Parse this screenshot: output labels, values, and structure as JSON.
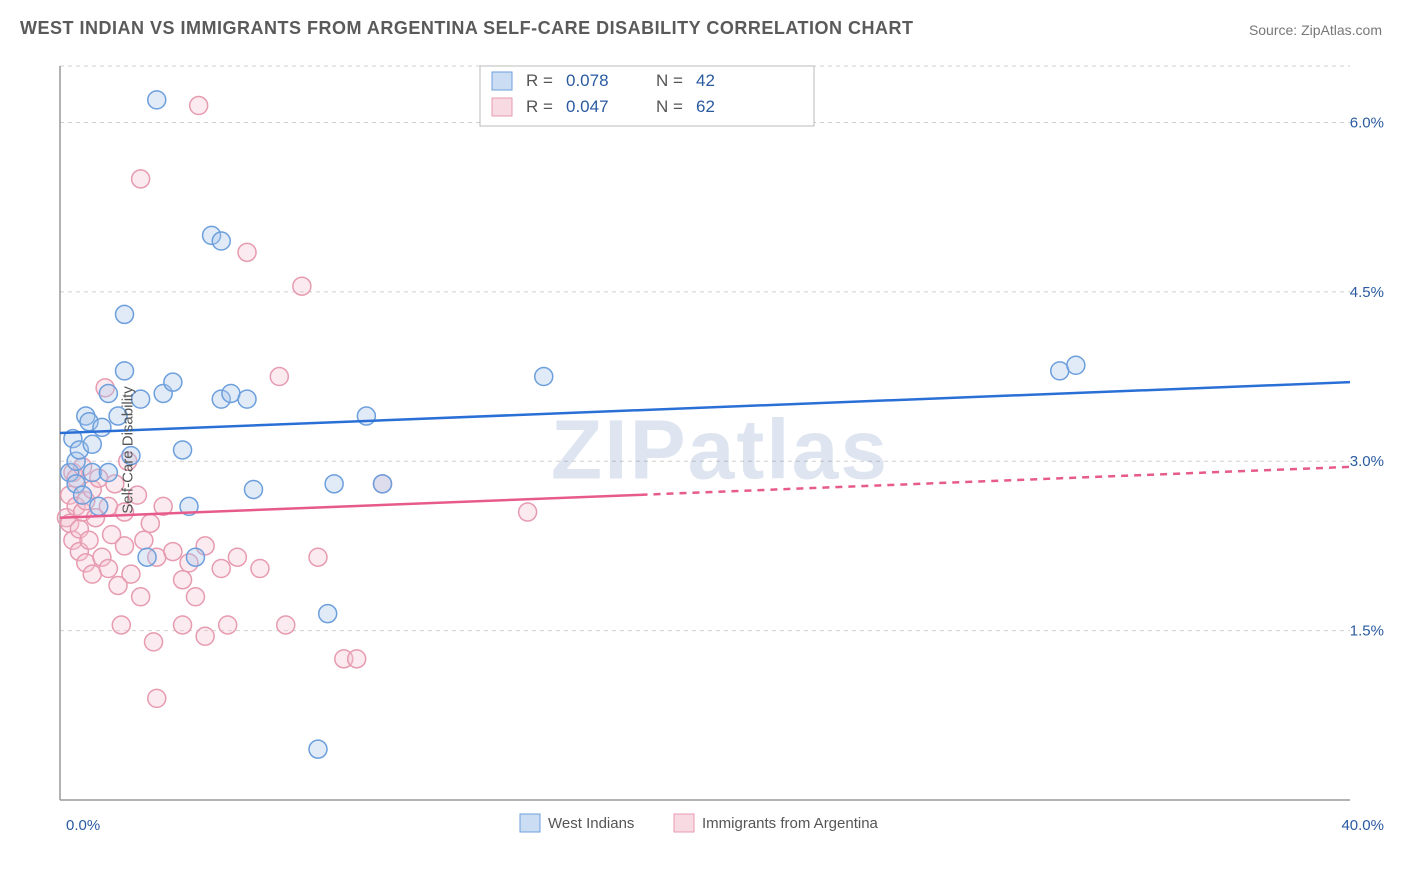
{
  "title": "WEST INDIAN VS IMMIGRANTS FROM ARGENTINA SELF-CARE DISABILITY CORRELATION CHART",
  "source_label": "Source: ",
  "source_name": "ZipAtlas.com",
  "watermark": "ZIPatlas",
  "y_axis_label": "Self-Care Disability",
  "chart": {
    "type": "scatter-with-regression",
    "xlim": [
      0,
      40
    ],
    "ylim": [
      0,
      6.5
    ],
    "x_tick_labels": [
      "0.0%",
      "40.0%"
    ],
    "y_ticks": [
      1.5,
      3.0,
      4.5,
      6.0
    ],
    "y_tick_labels": [
      "1.5%",
      "3.0%",
      "4.5%",
      "6.0%"
    ],
    "grid_color": "#cfcfcf",
    "axis_color": "#999999",
    "background_color": "#ffffff",
    "tick_label_color": "#2a5aa0",
    "marker_radius": 9,
    "marker_stroke_width": 1.5,
    "marker_fill_opacity": 0.35,
    "regression_line_width": 2.5,
    "series": [
      {
        "name": "West Indians",
        "color_stroke": "#6c9fdc",
        "color_fill": "#a9c7ea",
        "line_color": "#2a6fd6",
        "R": "0.078",
        "N": "42",
        "regression": {
          "x0": 0,
          "y0": 3.25,
          "x1": 40,
          "y1": 3.7,
          "dashed_from_x": null
        },
        "points": [
          [
            0.3,
            2.9
          ],
          [
            0.4,
            3.2
          ],
          [
            0.5,
            3.0
          ],
          [
            0.5,
            2.8
          ],
          [
            0.6,
            3.1
          ],
          [
            0.7,
            2.7
          ],
          [
            0.8,
            3.4
          ],
          [
            0.9,
            3.35
          ],
          [
            1.0,
            2.9
          ],
          [
            1.0,
            3.15
          ],
          [
            1.2,
            2.6
          ],
          [
            1.3,
            3.3
          ],
          [
            1.5,
            3.6
          ],
          [
            1.5,
            2.9
          ],
          [
            1.8,
            3.4
          ],
          [
            2.0,
            4.3
          ],
          [
            2.0,
            3.8
          ],
          [
            2.2,
            3.05
          ],
          [
            2.5,
            3.55
          ],
          [
            2.7,
            2.15
          ],
          [
            3.0,
            6.2
          ],
          [
            3.2,
            3.6
          ],
          [
            3.5,
            3.7
          ],
          [
            3.8,
            3.1
          ],
          [
            4.0,
            2.6
          ],
          [
            4.2,
            2.15
          ],
          [
            4.7,
            5.0
          ],
          [
            5.0,
            4.95
          ],
          [
            5.0,
            3.55
          ],
          [
            5.3,
            3.6
          ],
          [
            5.8,
            3.55
          ],
          [
            6.0,
            2.75
          ],
          [
            8.0,
            0.45
          ],
          [
            8.3,
            1.65
          ],
          [
            8.5,
            2.8
          ],
          [
            9.5,
            3.4
          ],
          [
            10.0,
            2.8
          ],
          [
            15.0,
            3.75
          ],
          [
            31.0,
            3.8
          ],
          [
            31.5,
            3.85
          ]
        ]
      },
      {
        "name": "Immigrants from Argentina",
        "color_stroke": "#e79bb0",
        "color_fill": "#f4c2d0",
        "line_color": "#e75a8c",
        "R": "0.047",
        "N": "62",
        "regression": {
          "x0": 0,
          "y0": 2.5,
          "x1": 40,
          "y1": 2.95,
          "dashed_from_x": 18
        },
        "points": [
          [
            0.2,
            2.5
          ],
          [
            0.3,
            2.7
          ],
          [
            0.3,
            2.45
          ],
          [
            0.4,
            2.9
          ],
          [
            0.4,
            2.3
          ],
          [
            0.5,
            2.6
          ],
          [
            0.5,
            2.85
          ],
          [
            0.6,
            2.4
          ],
          [
            0.6,
            2.2
          ],
          [
            0.7,
            2.55
          ],
          [
            0.7,
            2.95
          ],
          [
            0.8,
            2.1
          ],
          [
            0.8,
            2.65
          ],
          [
            0.9,
            2.3
          ],
          [
            1.0,
            2.75
          ],
          [
            1.0,
            2.0
          ],
          [
            1.1,
            2.5
          ],
          [
            1.2,
            2.85
          ],
          [
            1.3,
            2.15
          ],
          [
            1.4,
            3.65
          ],
          [
            1.5,
            2.05
          ],
          [
            1.5,
            2.6
          ],
          [
            1.6,
            2.35
          ],
          [
            1.7,
            2.8
          ],
          [
            1.8,
            1.9
          ],
          [
            1.9,
            1.55
          ],
          [
            2.0,
            2.25
          ],
          [
            2.0,
            2.55
          ],
          [
            2.1,
            3.0
          ],
          [
            2.2,
            2.0
          ],
          [
            2.4,
            2.7
          ],
          [
            2.5,
            1.8
          ],
          [
            2.5,
            5.5
          ],
          [
            2.6,
            2.3
          ],
          [
            2.8,
            2.45
          ],
          [
            2.9,
            1.4
          ],
          [
            3.0,
            2.15
          ],
          [
            3.0,
            0.9
          ],
          [
            3.2,
            2.6
          ],
          [
            3.5,
            2.2
          ],
          [
            3.8,
            1.55
          ],
          [
            3.8,
            1.95
          ],
          [
            4.0,
            2.1
          ],
          [
            4.2,
            1.8
          ],
          [
            4.3,
            6.15
          ],
          [
            4.5,
            2.25
          ],
          [
            4.5,
            1.45
          ],
          [
            5.0,
            2.05
          ],
          [
            5.2,
            1.55
          ],
          [
            5.5,
            2.15
          ],
          [
            5.8,
            4.85
          ],
          [
            6.2,
            2.05
          ],
          [
            6.8,
            3.75
          ],
          [
            7.0,
            1.55
          ],
          [
            7.5,
            4.55
          ],
          [
            8.0,
            2.15
          ],
          [
            8.8,
            1.25
          ],
          [
            9.2,
            1.25
          ],
          [
            10.0,
            2.8
          ],
          [
            14.5,
            2.55
          ]
        ]
      }
    ]
  },
  "legend_top": {
    "R_label": "R =",
    "N_label": "N ="
  },
  "legend_bottom": {
    "items": [
      "West Indians",
      "Immigrants from Argentina"
    ]
  }
}
